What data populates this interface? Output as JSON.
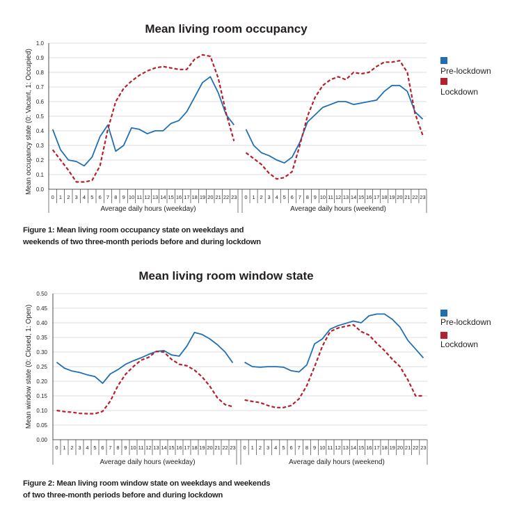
{
  "captions": [
    {
      "line1": "Figure 1: Mean living room occupancy state on weekdays and",
      "line2": "weekends of two three-month periods before and during lockdown"
    },
    {
      "line1": "Figure 2: Mean living room window state on weekdays and weekends",
      "line2": "of two three-month periods before and during lockdown"
    }
  ],
  "chart_data": [
    {
      "type": "line",
      "title": "Mean living room occupancy",
      "ylabel": "Mean occupancy state (0: Vacant, 1: Occupied)",
      "ylim": [
        0,
        1
      ],
      "yticks": [
        "0.0",
        "0.1",
        "0.2",
        "0.3",
        "0.4",
        "0.5",
        "0.6",
        "0.7",
        "0.8",
        "0.9",
        "1.0"
      ],
      "grid": true,
      "legend_position": "right",
      "panels": [
        {
          "xlabel": "Average daily hours (weekday)",
          "x": [
            "0",
            "1",
            "2",
            "3",
            "4",
            "5",
            "6",
            "7",
            "8",
            "9",
            "10",
            "11",
            "12",
            "13",
            "14",
            "15",
            "16",
            "17",
            "18",
            "19",
            "20",
            "21",
            "22",
            "23"
          ],
          "series": [
            {
              "name": "Pre-lockdown",
              "color": "#1f6fb2",
              "style": "solid",
              "values": [
                0.41,
                0.27,
                0.2,
                0.19,
                0.16,
                0.22,
                0.36,
                0.44,
                0.26,
                0.3,
                0.42,
                0.41,
                0.38,
                0.4,
                0.4,
                0.45,
                0.47,
                0.53,
                0.63,
                0.73,
                0.77,
                0.66,
                0.51,
                0.44
              ]
            },
            {
              "name": "Lockdown",
              "color": "#b5202e",
              "style": "dashed",
              "values": [
                0.27,
                0.2,
                0.13,
                0.05,
                0.05,
                0.06,
                0.16,
                0.41,
                0.6,
                0.69,
                0.74,
                0.78,
                0.81,
                0.83,
                0.84,
                0.83,
                0.82,
                0.82,
                0.89,
                0.92,
                0.91,
                0.76,
                0.52,
                0.33
              ]
            }
          ]
        },
        {
          "xlabel": "Average daily hours (weekend)",
          "x": [
            "0",
            "1",
            "2",
            "3",
            "4",
            "5",
            "6",
            "7",
            "8",
            "9",
            "10",
            "11",
            "12",
            "13",
            "14",
            "15",
            "16",
            "17",
            "18",
            "19",
            "20",
            "21",
            "22",
            "23"
          ],
          "series": [
            {
              "name": "Pre-lockdown",
              "color": "#1f6fb2",
              "style": "solid",
              "values": [
                0.41,
                0.3,
                0.25,
                0.23,
                0.2,
                0.18,
                0.22,
                0.32,
                0.46,
                0.51,
                0.56,
                0.58,
                0.6,
                0.6,
                0.58,
                0.59,
                0.6,
                0.61,
                0.67,
                0.71,
                0.71,
                0.67,
                0.53,
                0.48
              ]
            },
            {
              "name": "Lockdown",
              "color": "#b5202e",
              "style": "dashed",
              "values": [
                0.25,
                0.21,
                0.17,
                0.11,
                0.07,
                0.08,
                0.12,
                0.3,
                0.5,
                0.63,
                0.71,
                0.75,
                0.77,
                0.75,
                0.8,
                0.79,
                0.8,
                0.84,
                0.87,
                0.87,
                0.88,
                0.8,
                0.52,
                0.37
              ]
            }
          ]
        }
      ]
    },
    {
      "type": "line",
      "title": "Mean living room window state",
      "ylabel": "Mean window state (0: Closed, 1: Open)",
      "ylim": [
        0,
        0.5
      ],
      "yticks": [
        "0.00",
        "0.05",
        "0.10",
        "0.15",
        "0.20",
        "0.25",
        "0.30",
        "0.35",
        "0.40",
        "0.45",
        "0.50"
      ],
      "grid": true,
      "legend_position": "right",
      "panels": [
        {
          "xlabel": "Average daily hours (weekday)",
          "x": [
            "0",
            "1",
            "2",
            "3",
            "4",
            "5",
            "6",
            "7",
            "8",
            "9",
            "10",
            "11",
            "12",
            "13",
            "14",
            "15",
            "16",
            "17",
            "18",
            "19",
            "20",
            "21",
            "22",
            "23"
          ],
          "series": [
            {
              "name": "Pre-lockdown",
              "color": "#1f6fb2",
              "style": "solid",
              "values": [
                0.265,
                0.245,
                0.235,
                0.23,
                0.222,
                0.216,
                0.193,
                0.225,
                0.24,
                0.258,
                0.27,
                0.28,
                0.292,
                0.302,
                0.305,
                0.29,
                0.286,
                0.32,
                0.367,
                0.36,
                0.345,
                0.325,
                0.3,
                0.263
              ]
            },
            {
              "name": "Lockdown",
              "color": "#b5202e",
              "style": "dashed",
              "values": [
                0.1,
                0.096,
                0.094,
                0.09,
                0.089,
                0.089,
                0.097,
                0.132,
                0.185,
                0.224,
                0.25,
                0.272,
                0.282,
                0.302,
                0.3,
                0.275,
                0.258,
                0.253,
                0.238,
                0.215,
                0.183,
                0.143,
                0.12,
                0.113
              ]
            }
          ]
        },
        {
          "xlabel": "Average daily hours (weekend)",
          "x": [
            "0",
            "1",
            "2",
            "3",
            "4",
            "5",
            "6",
            "7",
            "8",
            "9",
            "10",
            "11",
            "12",
            "13",
            "14",
            "15",
            "16",
            "17",
            "18",
            "19",
            "20",
            "21",
            "22",
            "23"
          ],
          "series": [
            {
              "name": "Pre-lockdown",
              "color": "#1f6fb2",
              "style": "solid",
              "values": [
                0.265,
                0.25,
                0.248,
                0.25,
                0.25,
                0.248,
                0.236,
                0.232,
                0.256,
                0.328,
                0.345,
                0.378,
                0.39,
                0.398,
                0.406,
                0.4,
                0.424,
                0.43,
                0.43,
                0.412,
                0.385,
                0.34,
                0.31,
                0.28
              ]
            },
            {
              "name": "Lockdown",
              "color": "#b5202e",
              "style": "dashed",
              "values": [
                0.136,
                0.131,
                0.127,
                0.117,
                0.11,
                0.11,
                0.117,
                0.14,
                0.185,
                0.25,
                0.32,
                0.37,
                0.382,
                0.388,
                0.393,
                0.37,
                0.358,
                0.33,
                0.305,
                0.275,
                0.25,
                0.205,
                0.15,
                0.15
              ]
            }
          ]
        }
      ]
    }
  ]
}
